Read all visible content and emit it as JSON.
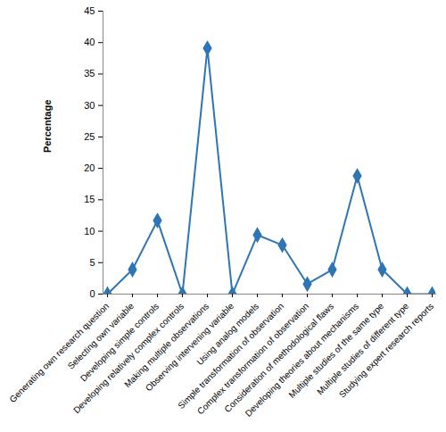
{
  "chart_data": {
    "type": "line",
    "y_label": "Percentage",
    "categories": [
      "Generating own research question",
      "Selecting own variable",
      "Developing simple controls",
      "Developing relatively complex controls",
      "Making multiple observations",
      "Observing intervening variable",
      "Using analog models",
      "Simple transformation of observation",
      "Complex transformation of observation",
      "Consideration of methodological flaws",
      "Developing theories about mechanisms",
      "Multiple studies of the same type",
      "Multiple studies of different type",
      "Studying expert research reports"
    ],
    "values": [
      0,
      3.9,
      11.7,
      0,
      39.1,
      0,
      9.4,
      7.8,
      1.6,
      3.9,
      18.8,
      3.9,
      0,
      0
    ],
    "color": "#2e75b6",
    "marker": "diamond",
    "ylim": [
      0,
      45
    ],
    "yticks": [
      0,
      5,
      10,
      15,
      20,
      25,
      30,
      35,
      40,
      45
    ],
    "grid": false
  }
}
